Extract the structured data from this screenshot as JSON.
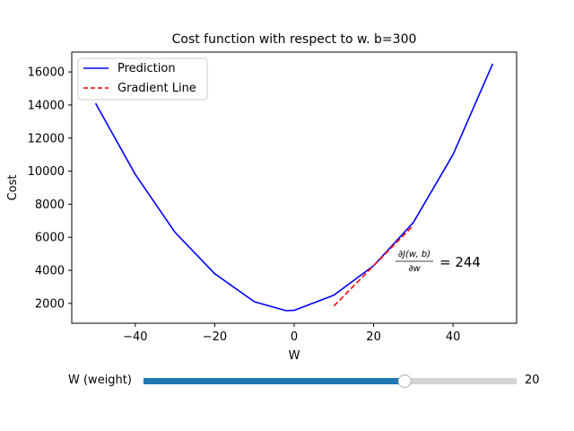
{
  "chart_data": {
    "type": "line",
    "title": "Cost function with respect to w. b=300",
    "xlabel": "W",
    "ylabel": "Cost",
    "xlim": [
      -56,
      56
    ],
    "ylim": [
      800,
      17200
    ],
    "xticks": [
      -40,
      -20,
      0,
      20,
      40
    ],
    "yticks": [
      2000,
      4000,
      6000,
      8000,
      10000,
      12000,
      14000,
      16000
    ],
    "grid": false,
    "legend_position": "top-left",
    "series": [
      {
        "name": "Prediction",
        "style": "solid",
        "color": "#0000ff",
        "x": [
          -50,
          -40,
          -30,
          -20,
          -10,
          -2,
          0,
          10,
          20,
          30,
          40,
          50
        ],
        "y": [
          14100,
          9800,
          6300,
          3800,
          2100,
          1560,
          1580,
          2500,
          4280,
          6900,
          11000,
          16500
        ]
      },
      {
        "name": "Gradient Line",
        "style": "dashed",
        "color": "#ff0000",
        "x": [
          10,
          30
        ],
        "y": [
          1840,
          6720
        ]
      }
    ],
    "annotation": {
      "text": "= 244",
      "x": 25,
      "y": 4400,
      "derivative": {
        "top": "∂J(w, b)",
        "bottom": "∂w"
      }
    }
  },
  "slider": {
    "label": "W (weight)",
    "value": "20",
    "min": -50,
    "max": 50,
    "current": 20,
    "fill_color": "#1f77b4",
    "track_color": "#d3d3d3"
  }
}
